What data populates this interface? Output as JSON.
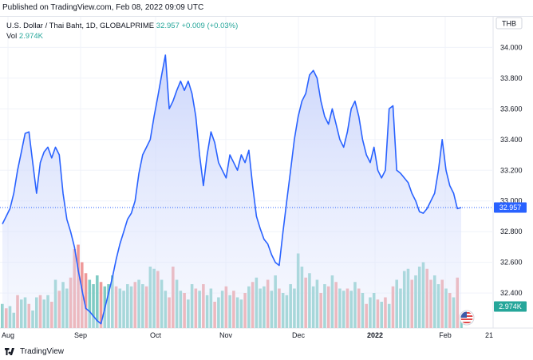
{
  "header": {
    "published": "Published on TradingView.com, Feb 08, 2022 09:09 UTC"
  },
  "legend": {
    "symbol": "U.S. Dollar / Thai Baht, 1D, GLOBALPRIME",
    "price": "32.957",
    "change": "+0.009 (+0.03%)",
    "vol_label": "Vol",
    "vol_value": "2.974K"
  },
  "currency_button": "THB",
  "footer": {
    "brand": "TradingView"
  },
  "colors": {
    "line": "#2962ff",
    "area_top": "#c3cffb",
    "vol_up": "#80cbc4",
    "vol_down": "#ef9a9a",
    "price_badge": "#2962ff",
    "vol_badge": "#26a69a"
  },
  "chart_data": {
    "type": "line",
    "title": "U.S. Dollar / Thai Baht, 1D, GLOBALPRIME",
    "ylim": [
      32.38,
      34.08
    ],
    "y_ticks": [
      34.0,
      33.8,
      33.6,
      33.4,
      33.2,
      33.0,
      32.8,
      32.6,
      32.4
    ],
    "y_tick_labels": [
      "34.000",
      "33.800",
      "33.600",
      "33.400",
      "33.200",
      "33.000",
      "32.800",
      "32.600",
      "32.400"
    ],
    "x_tick_labels": [
      "Aug",
      "Sep",
      "Oct",
      "Nov",
      "Dec",
      "2022",
      "Feb",
      "21"
    ],
    "last_price": 32.957,
    "last_volume": "2.974K",
    "close": [
      32.85,
      32.9,
      32.95,
      33.05,
      33.2,
      33.32,
      33.44,
      33.45,
      33.25,
      33.05,
      33.25,
      33.32,
      33.35,
      33.28,
      33.35,
      33.3,
      33.05,
      32.88,
      32.8,
      32.7,
      32.55,
      32.42,
      32.3,
      32.28,
      32.25,
      32.22,
      32.2,
      32.3,
      32.4,
      32.5,
      32.62,
      32.72,
      32.8,
      32.88,
      32.92,
      33.0,
      33.18,
      33.3,
      33.35,
      33.4,
      33.55,
      33.68,
      33.82,
      33.95,
      33.6,
      33.65,
      33.72,
      33.78,
      33.72,
      33.78,
      33.7,
      33.55,
      33.3,
      33.1,
      33.3,
      33.45,
      33.38,
      33.25,
      33.2,
      33.15,
      33.3,
      33.25,
      33.2,
      33.3,
      33.25,
      33.33,
      33.1,
      32.9,
      32.82,
      32.75,
      32.72,
      32.65,
      32.6,
      32.58,
      32.8,
      33.0,
      33.2,
      33.4,
      33.55,
      33.65,
      33.7,
      33.82,
      33.85,
      33.8,
      33.65,
      33.55,
      33.5,
      33.6,
      33.5,
      33.4,
      33.35,
      33.45,
      33.6,
      33.65,
      33.55,
      33.4,
      33.3,
      33.25,
      33.35,
      33.2,
      33.15,
      33.2,
      33.6,
      33.62,
      33.2,
      33.18,
      33.15,
      33.12,
      33.05,
      33.0,
      32.93,
      32.92,
      32.95,
      33.0,
      33.05,
      33.2,
      33.4,
      33.2,
      33.1,
      33.05,
      32.95,
      32.957
    ],
    "volume": [
      0.11,
      0.09,
      0.1,
      0.07,
      0.15,
      0.13,
      0.14,
      0.11,
      0.08,
      0.14,
      0.15,
      0.13,
      0.15,
      0.12,
      0.22,
      0.17,
      0.21,
      0.18,
      0.23,
      0.36,
      0.38,
      0.3,
      0.25,
      0.22,
      0.2,
      0.24,
      0.21,
      0.19,
      0.2,
      0.24,
      0.19,
      0.18,
      0.17,
      0.2,
      0.19,
      0.21,
      0.22,
      0.2,
      0.19,
      0.28,
      0.27,
      0.26,
      0.22,
      0.17,
      0.14,
      0.28,
      0.22,
      0.17,
      0.16,
      0.13,
      0.2,
      0.18,
      0.17,
      0.2,
      0.15,
      0.18,
      0.12,
      0.14,
      0.17,
      0.19,
      0.15,
      0.17,
      0.14,
      0.13,
      0.16,
      0.19,
      0.21,
      0.23,
      0.18,
      0.19,
      0.22,
      0.17,
      0.24,
      0.18,
      0.16,
      0.15,
      0.2,
      0.18,
      0.34,
      0.28,
      0.23,
      0.25,
      0.19,
      0.22,
      0.16,
      0.2,
      0.19,
      0.24,
      0.21,
      0.18,
      0.17,
      0.18,
      0.17,
      0.21,
      0.18,
      0.16,
      0.11,
      0.14,
      0.16,
      0.13,
      0.12,
      0.14,
      0.11,
      0.19,
      0.22,
      0.18,
      0.26,
      0.27,
      0.22,
      0.24,
      0.28,
      0.3,
      0.27,
      0.22,
      0.24,
      0.2,
      0.22,
      0.18,
      0.16,
      0.14,
      0.23,
      0.04
    ],
    "volume_down": [
      false,
      true,
      false,
      false,
      true,
      false,
      false,
      true,
      false,
      false,
      true,
      false,
      false,
      true,
      false,
      true,
      false,
      false,
      true,
      true,
      true,
      true,
      true,
      false,
      false,
      false,
      true,
      false,
      false,
      false,
      true,
      false,
      false,
      false,
      false,
      true,
      false,
      false,
      true,
      false,
      false,
      true,
      false,
      false,
      true,
      true,
      false,
      false,
      true,
      false,
      false,
      true,
      false,
      true,
      false,
      false,
      true,
      false,
      false,
      true,
      false,
      true,
      false,
      false,
      true,
      false,
      true,
      false,
      false,
      false,
      true,
      false,
      false,
      true,
      false,
      false,
      false,
      false,
      false,
      false,
      true,
      false,
      false,
      false,
      true,
      false,
      true,
      false,
      true,
      false,
      false,
      true,
      false,
      false,
      true,
      false,
      true,
      false,
      false,
      true,
      false,
      true,
      false,
      true,
      false,
      false,
      false,
      false,
      true,
      false,
      false,
      false,
      true,
      true,
      false,
      false,
      true,
      false,
      true,
      false,
      true,
      false
    ]
  }
}
